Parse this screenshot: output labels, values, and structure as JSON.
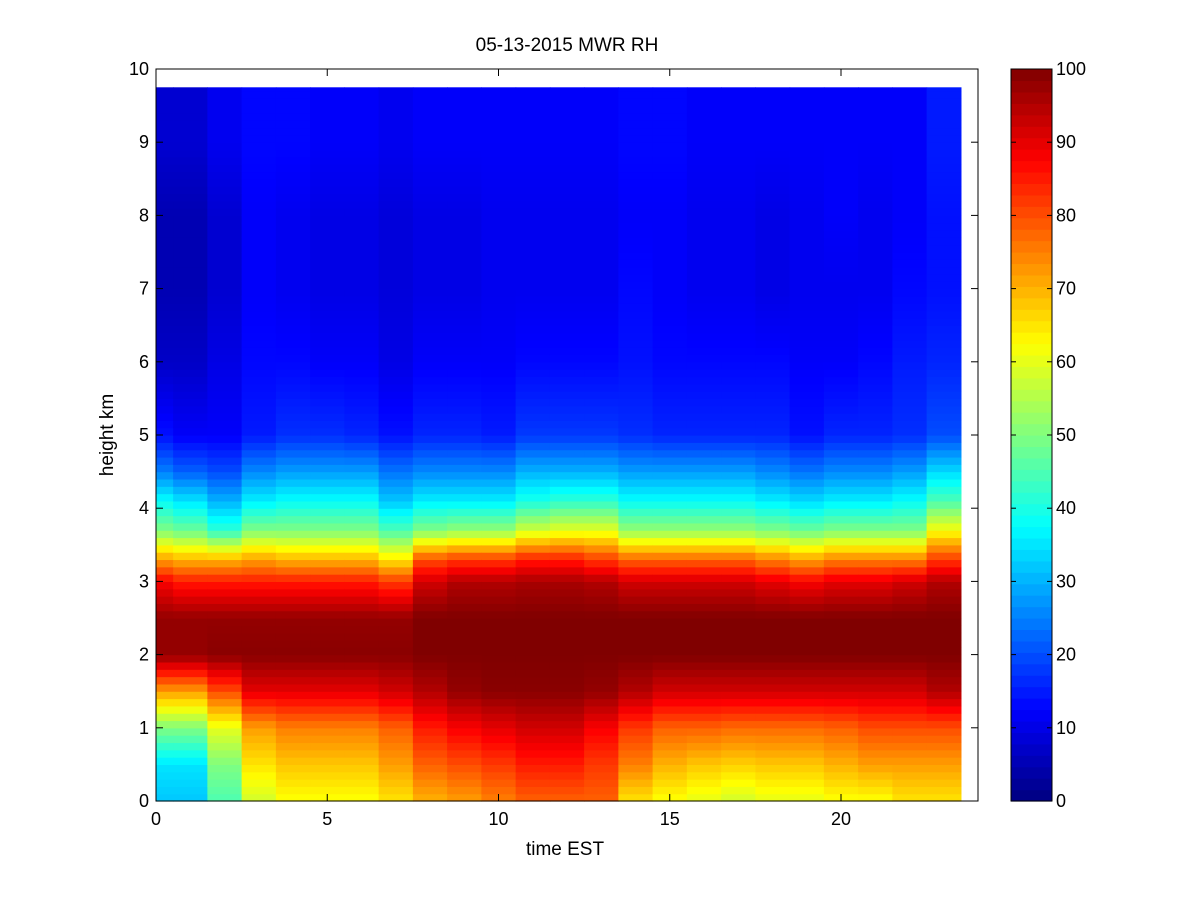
{
  "chart_data": {
    "type": "heatmap",
    "title": "05-13-2015 MWR RH",
    "xlabel": "time EST",
    "ylabel": "height km",
    "xlim": [
      0,
      24
    ],
    "ylim": [
      0,
      10
    ],
    "x_ticks": [
      0,
      5,
      10,
      15,
      20
    ],
    "y_ticks": [
      0,
      1,
      2,
      3,
      4,
      5,
      6,
      7,
      8,
      9,
      10
    ],
    "colorbar": {
      "colormap": "jet",
      "range": [
        0,
        100
      ],
      "ticks": [
        0,
        10,
        20,
        30,
        40,
        50,
        60,
        70,
        80,
        90,
        100
      ]
    },
    "times": [
      0,
      1,
      2,
      3,
      4,
      5,
      6,
      7,
      8,
      9,
      10,
      11,
      12,
      13,
      14,
      15,
      16,
      17,
      18,
      19,
      20,
      21,
      22,
      23
    ],
    "data_top_km": 9.75,
    "profiles": [
      {
        "h": 0.0,
        "rh": [
          32,
          32,
          45,
          58,
          62,
          62,
          62,
          65,
          70,
          72,
          75,
          78,
          78,
          78,
          65,
          62,
          60,
          58,
          60,
          60,
          62,
          62,
          65,
          65
        ]
      },
      {
        "h": 0.5,
        "rh": [
          35,
          35,
          50,
          65,
          68,
          68,
          68,
          72,
          78,
          80,
          82,
          85,
          85,
          82,
          75,
          70,
          68,
          67,
          68,
          68,
          70,
          72,
          72,
          72
        ]
      },
      {
        "h": 1.0,
        "rh": [
          50,
          50,
          60,
          72,
          75,
          75,
          75,
          78,
          85,
          88,
          90,
          92,
          92,
          88,
          82,
          78,
          78,
          77,
          77,
          77,
          78,
          80,
          80,
          80
        ]
      },
      {
        "h": 1.5,
        "rh": [
          72,
          72,
          80,
          90,
          90,
          90,
          90,
          92,
          95,
          98,
          99,
          99,
          99,
          98,
          95,
          92,
          92,
          92,
          92,
          92,
          92,
          92,
          92,
          95
        ]
      },
      {
        "h": 2.0,
        "rh": [
          98,
          98,
          99,
          99,
          99,
          99,
          99,
          99,
          100,
          100,
          100,
          100,
          100,
          100,
          100,
          100,
          100,
          100,
          100,
          100,
          100,
          100,
          100,
          100
        ]
      },
      {
        "h": 2.5,
        "rh": [
          98,
          98,
          98,
          98,
          98,
          98,
          98,
          98,
          100,
          100,
          100,
          100,
          100,
          100,
          100,
          100,
          100,
          100,
          100,
          100,
          100,
          100,
          100,
          100
        ]
      },
      {
        "h": 3.0,
        "rh": [
          88,
          85,
          85,
          85,
          85,
          85,
          85,
          82,
          92,
          95,
          95,
          96,
          96,
          95,
          92,
          92,
          92,
          92,
          90,
          88,
          90,
          90,
          92,
          95
        ]
      },
      {
        "h": 3.3,
        "rh": [
          72,
          70,
          70,
          72,
          70,
          70,
          70,
          65,
          80,
          82,
          82,
          85,
          85,
          82,
          78,
          78,
          78,
          78,
          75,
          72,
          75,
          75,
          75,
          82
        ]
      },
      {
        "h": 3.7,
        "rh": [
          50,
          48,
          42,
          50,
          50,
          50,
          50,
          45,
          50,
          52,
          52,
          58,
          60,
          60,
          52,
          52,
          52,
          52,
          50,
          48,
          50,
          50,
          50,
          62
        ]
      },
      {
        "h": 4.1,
        "rh": [
          38,
          35,
          30,
          36,
          38,
          38,
          38,
          32,
          36,
          36,
          36,
          40,
          42,
          42,
          38,
          38,
          38,
          38,
          36,
          34,
          36,
          36,
          38,
          45
        ]
      },
      {
        "h": 4.5,
        "rh": [
          25,
          22,
          20,
          26,
          28,
          28,
          28,
          24,
          26,
          26,
          26,
          30,
          30,
          30,
          28,
          28,
          28,
          28,
          26,
          24,
          26,
          26,
          28,
          34
        ]
      },
      {
        "h": 5.0,
        "rh": [
          14,
          12,
          12,
          15,
          17,
          17,
          16,
          14,
          16,
          16,
          15,
          18,
          18,
          18,
          17,
          16,
          16,
          16,
          16,
          14,
          16,
          16,
          17,
          20
        ]
      },
      {
        "h": 6.0,
        "rh": [
          7,
          7,
          10,
          13,
          13,
          12,
          12,
          10,
          12,
          12,
          12,
          13,
          13,
          13,
          14,
          13,
          13,
          13,
          13,
          12,
          12,
          13,
          15,
          16
        ]
      },
      {
        "h": 7.0,
        "rh": [
          5,
          5,
          8,
          12,
          11,
          10,
          10,
          9,
          10,
          10,
          11,
          11,
          11,
          11,
          13,
          12,
          11,
          11,
          10,
          11,
          11,
          11,
          13,
          14
        ]
      },
      {
        "h": 8.0,
        "rh": [
          5,
          5,
          8,
          12,
          11,
          10,
          10,
          9,
          10,
          10,
          11,
          11,
          11,
          11,
          12,
          12,
          11,
          11,
          10,
          11,
          12,
          11,
          12,
          14
        ]
      },
      {
        "h": 9.0,
        "rh": [
          8,
          8,
          11,
          13,
          13,
          12,
          12,
          11,
          12,
          12,
          12,
          12,
          12,
          12,
          13,
          13,
          12,
          12,
          12,
          12,
          12,
          12,
          12,
          15
        ]
      },
      {
        "h": 9.75,
        "rh": [
          8,
          8,
          11,
          13,
          13,
          12,
          12,
          11,
          12,
          12,
          12,
          12,
          12,
          12,
          13,
          13,
          12,
          12,
          12,
          12,
          12,
          12,
          12,
          15
        ]
      }
    ]
  }
}
